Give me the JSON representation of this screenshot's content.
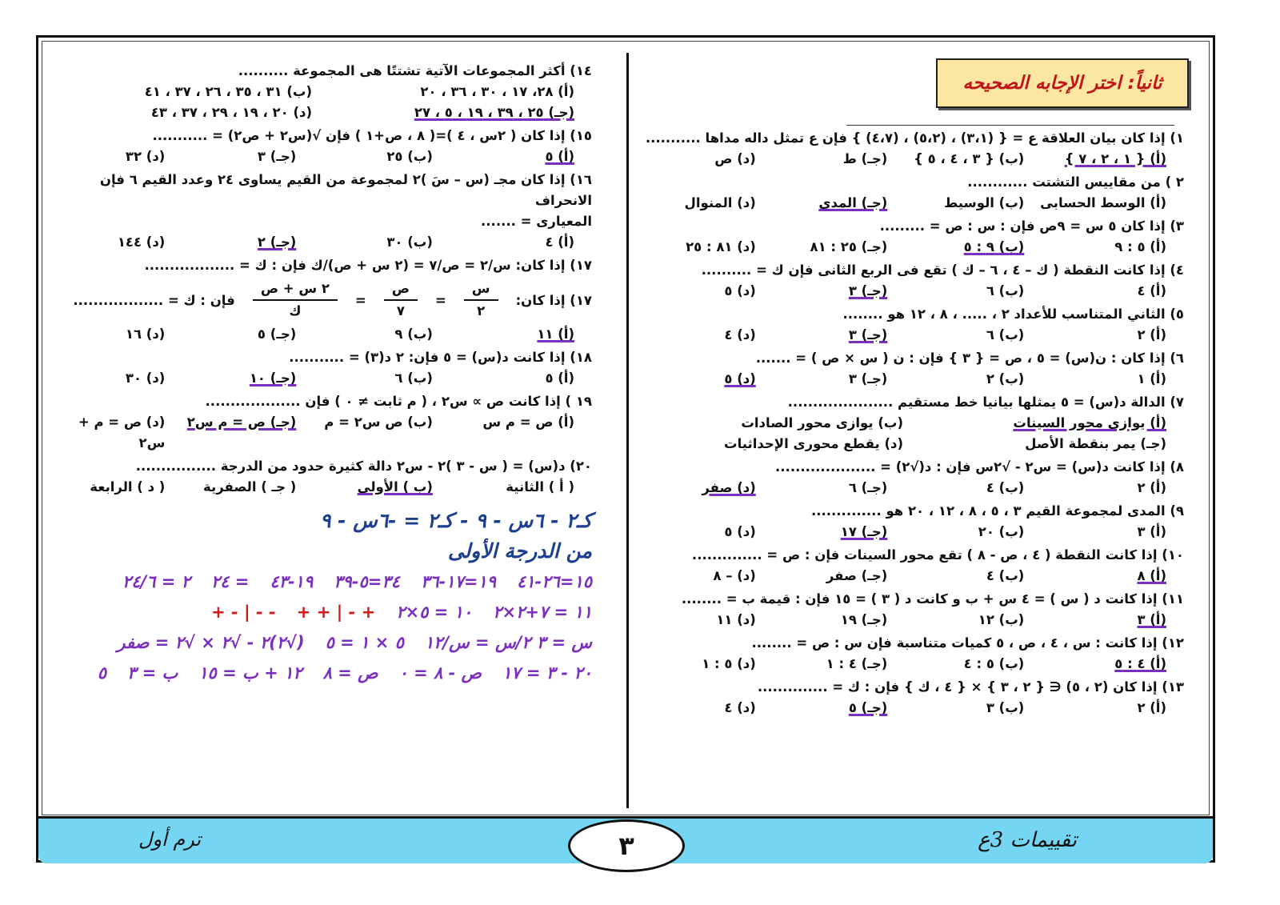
{
  "section_title": "ثانياً: اختر الإجابه الصحيحه",
  "footer": {
    "left": "ترم أول",
    "right": "تقييمات 3ع",
    "page_number": "٣"
  },
  "colors": {
    "footer_bg": "#74d6f3",
    "title_bg": "#fbe7a1",
    "title_text": "#c0141b",
    "pen_purple": "#7a2fbf",
    "pen_blue": "#1d3f8f"
  },
  "right_column": [
    {
      "stem": "١) إذا كان بيان العلاقة ع = { (٣،١) ، (٥،٢) ، (٤،٧) } فإن ع تمثل داله مداها ...........",
      "options": [
        "(أ) { ١ ، ٢ ، ٧ }",
        "(ب) { ٣ ، ٤ ، ٥ }",
        "(جـ) ط",
        "(د) ص"
      ],
      "marked": 0
    },
    {
      "stem": "٢ ) من مقاييس التشتت ............",
      "options": [
        "(أ) الوسط الحسابى",
        "(ب) الوسيط",
        "(جـ) المدى",
        "(د) المنوال"
      ],
      "marked": 2
    },
    {
      "stem": "٣) إذا كان ٥ س = ٩ص فإن : س : ص = .........",
      "options": [
        "(أ) ٥ : ٩",
        "(ب) ٩ : ٥",
        "(جـ) ٢٥ : ٨١",
        "(د) ٨١ : ٢٥"
      ],
      "marked": 1
    },
    {
      "stem": "٤) إذا كانت النقطة ( ك – ٤ ، ٦ – ك ) تقع فى الربع الثانى فإن ك = ..........",
      "options": [
        "(أ) ٤",
        "(ب) ٦",
        "(جـ) ٣",
        "(د) ٥"
      ],
      "marked": 2
    },
    {
      "stem": "٥) الثاني المتناسب للأعداد ٢ ، ..... ، ٨ ، ١٢ هو ........",
      "options": [
        "(أ) ٢",
        "(ب) ٦",
        "(جـ) ٣",
        "(د) ٤"
      ],
      "marked": 2
    },
    {
      "stem": "٦) إذا كان : ن(س) = ٥ ، ص = { ٣ } فإن : ن ( س × ص ) = .......",
      "options": [
        "(أ) ١",
        "(ب) ٢",
        "(جـ) ٣",
        "(د) ٥"
      ],
      "marked": 3
    },
    {
      "stem": "٧) الدالة د(س) = ٥ يمثلها بيانيا خط مستقيم .....................",
      "options": [
        "(أ) يوازى محور السينات",
        "(ب) يوازى محور الصادات",
        "(جـ) يمر بنقطة الأصل",
        "(د) يقطع محورى الإحداثيات"
      ],
      "marked": 0
    },
    {
      "stem": "٨) إذا كانت د(س) = س٢ - √٢س فإن : د(√٢) = ....................",
      "options": [
        "(أ) ٢",
        "(ب) ٤",
        "(جـ) ٦",
        "(د) صفر"
      ],
      "marked": 3
    },
    {
      "stem": "٩) المدى لمجموعة القيم ٣ ، ٥ ، ٨ ، ١٢ ، ٢٠ هو ..............",
      "options": [
        "(أ) ٣",
        "(ب) ٢٠",
        "(جـ) ١٧",
        "(د) ٥"
      ],
      "marked": 2
    },
    {
      "stem": "١٠) إذا كانت النقطة ( ٤ ، ص - ٨ ) تقع محور السينات فإن : ص = ..............",
      "options": [
        "(أ) ٨",
        "(ب) ٤",
        "(جـ) صفر",
        "(د) – ٨"
      ],
      "marked": 0
    },
    {
      "stem": "١١) إذا كانت د ( س ) = ٤ س + ب و كانت د ( ٣ ) = ١٥ فإن : قيمة ب = ........",
      "options": [
        "(أ) ٣",
        "(ب) ١٢",
        "(جـ) ١٩",
        "(د) ١١"
      ],
      "marked": 0
    },
    {
      "stem": "١٢) إذا كانت : س ، ٤ ، ص ، ٥ كميات متناسبة فإن س : ص = ........",
      "options": [
        "(أ) ٤ : ٥",
        "(ب) ٥ : ٤",
        "(جـ) ٤ : ١",
        "(د) ٥ : ١"
      ],
      "marked": 0
    },
    {
      "stem": "١٣) إذا كان (٢ ، ٥) ∈ { ٢ ، ٣ } × { ٤ ، ك } فإن : ك = ..............",
      "options": [
        "(أ) ٢",
        "(ب) ٣",
        "(جـ) ٥",
        "(د) ٤"
      ],
      "marked": 2
    }
  ],
  "left_column": [
    {
      "stem": "١٤) أكثر المجموعات الآتية تشتتًا هى المجموعة ..........",
      "options": [
        "(أ) ٢٨، ١٧ ، ٣٠ ، ٣٦ ، ٢٠",
        "(ب) ٣١ ، ٣٥ ، ٢٦ ، ٣٧ ، ٤١",
        "(جـ) ٢٥ ، ٣٩ ، ١٩ ، ٥ ، ٢٧",
        "(د) ٢٠ ، ١٩ ، ٢٩ ، ٣٧ ، ٤٣"
      ],
      "marked": 2
    },
    {
      "stem": "١٥) إذا كان ( ٢س ، ٤ )=( ٨ ، ص+١ ) فإن √(س٢ + ص٢) = ...........",
      "options": [
        "(أ) ٥",
        "(ب) ٢٥",
        "(جـ) ٣",
        "(د) ٣٢"
      ],
      "marked": 0
    },
    {
      "stem": "١٦) إذا كان مجـ (س – سَ )٢ لمجموعة من القيم يساوى ٢٤ وعدد القيم ٦ فإن الانحراف",
      "stem2": "المعيارى = .......",
      "options": [
        "(أ) ٤",
        "(ب) ٣٠",
        "(جـ) ٢",
        "(د) ١٤٤"
      ],
      "marked": 2
    },
    {
      "stem": "١٧) إذا كان:  س/٢ = ص/٧ = (٢ س + ص)/ك  فإن : ك = ..................",
      "fraction": {
        "a_num": "س",
        "a_den": "٢",
        "b_num": "ص",
        "b_den": "٧",
        "c_num": "٢ س + ص",
        "c_den": "ك",
        "prefix": "١٧) إذا كان:",
        "suffix": "فإن : ك = .................."
      },
      "options": [
        "(أ) ١١",
        "(ب) ٩",
        "(جـ) ٥",
        "(د) ١٦"
      ],
      "marked": 0
    },
    {
      "stem": "١٨) إذا كانت د(س) = ٥ فإن:  ٢ د(٣) = ...........",
      "options": [
        "(أ) ٥",
        "(ب) ٦",
        "(جـ) ١٠",
        "(د) ٣٠"
      ],
      "marked": 2
    },
    {
      "stem": "١٩ ) إذا كانت ص ∝ س٢ ، ( م ثابت ≠ ٠ ) فإن ...................",
      "options": [
        "(أ) ص = م س",
        "(ب) ص س٢ = م",
        "(جـ) ص = م س٢",
        "(د) ص = م + س٢"
      ],
      "marked": 2
    },
    {
      "stem": "٢٠) د(س) = ( س - ٣ )٢ - س٢ دالة كثيرة حدود من الدرجة ................",
      "options": [
        "( أ ) الثانية",
        "(ب ) الأولى",
        "( جـ ) الصفرية",
        "( د ) الرابعة"
      ],
      "marked": 1
    }
  ],
  "handwritten": {
    "l1": "١٥=٢٦-٤١",
    "l2": "١٩=١٧-٣٦",
    "l3": "٣٤=٥-٣٩",
    "l4": "١٩-٤٣",
    "l5": "= ٢٤",
    "l6": "٢ = ٢٤/٦",
    "l7": "١١ = ٧+٢×٢",
    "l8": "١٠ = ٥×٢",
    "l9": "كـ٢ - ٦س - ٩ - كـ٢ = -٦س - ٩",
    "l10": "من الدرجة الأولى",
    "r1": "+ - | + +",
    "r2": "- - | - +",
    "r3": "س = ٣   ٢/س = س/١٢",
    "r4": "٥ × ١ = ٥",
    "r5": "(√٢)٢ - √٢ × √٢ = صفر",
    "r6": "٢٠ - ٣ = ١٧",
    "r7": "ص - ٨ = ٠",
    "r8": "ص = ٨",
    "r9": "١٢ + ب = ١٥",
    "r10": "ب = ٣",
    "r11": "٥"
  }
}
